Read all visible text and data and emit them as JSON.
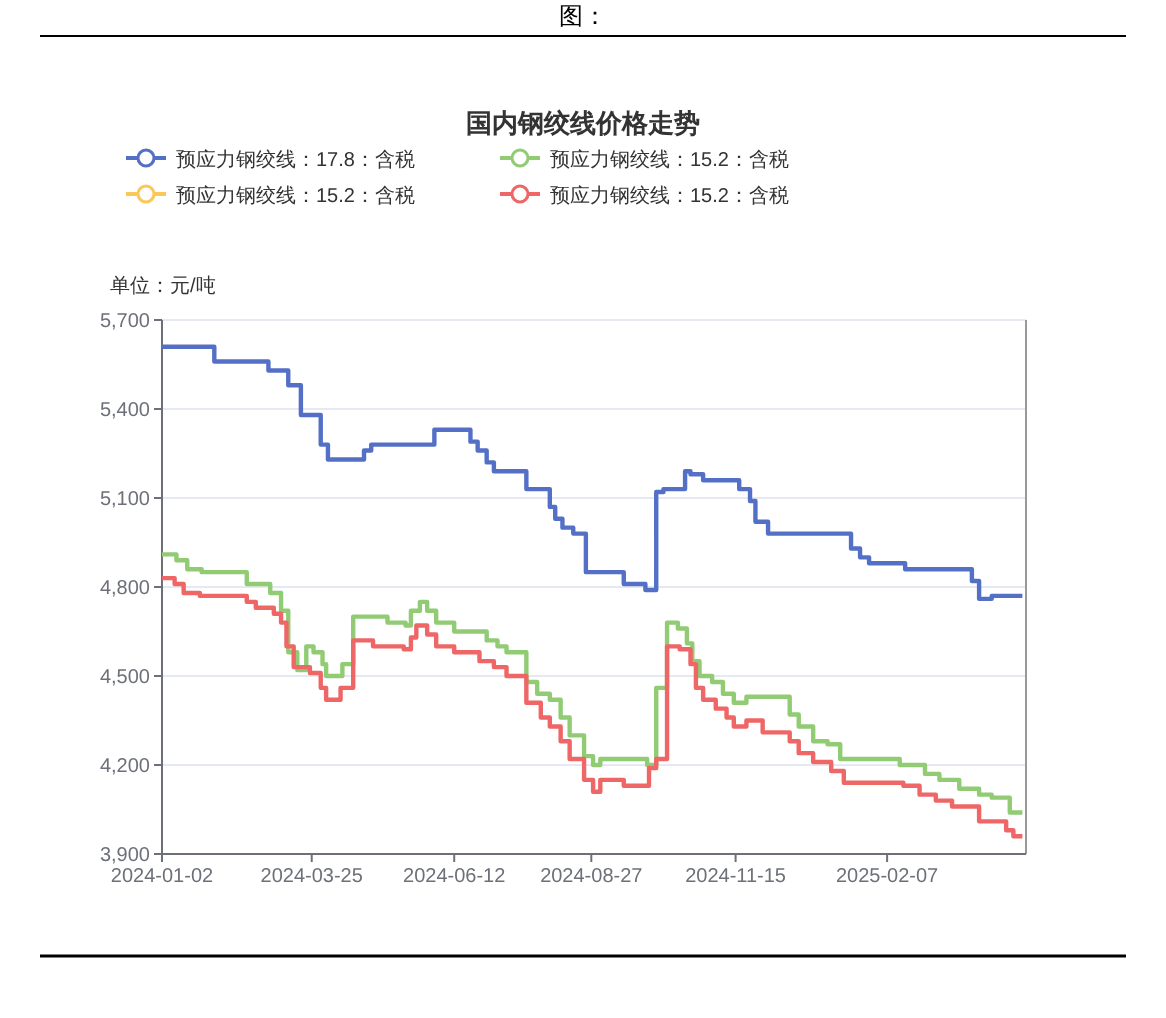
{
  "chart_data": {
    "type": "step",
    "title": "国内钢绞线价格走势",
    "ylabel": "单位：元/吨",
    "annotations": [
      "图："
    ],
    "xlim": [
      "2024-01-02",
      "2025-04-25"
    ],
    "xticks": [
      "2024-01-02",
      "2024-03-25",
      "2024-06-12",
      "2024-08-27",
      "2024-11-15",
      "2025-02-07"
    ],
    "ylim": [
      3900,
      5700
    ],
    "yticks": [
      {
        "value": 3900,
        "label": "3,900"
      },
      {
        "value": 4200,
        "label": "4,200"
      },
      {
        "value": 4500,
        "label": "4,500"
      },
      {
        "value": 4800,
        "label": "4,800"
      },
      {
        "value": 5100,
        "label": "5,100"
      },
      {
        "value": 5400,
        "label": "5,400"
      },
      {
        "value": 5700,
        "label": "5,700"
      }
    ],
    "grid": "y",
    "legend": "top",
    "marker": "none",
    "line_style": "solid",
    "series": [
      {
        "name": "预应力钢绞线：17.8：含税",
        "color": "#5470c6",
        "x": [
          "2024-01-02",
          "2024-01-31",
          "2024-03-01",
          "2024-03-12",
          "2024-03-19",
          "2024-03-30",
          "2024-04-03",
          "2024-04-23",
          "2024-04-27",
          "2024-06-01",
          "2024-06-21",
          "2024-06-25",
          "2024-06-30",
          "2024-07-04",
          "2024-07-22",
          "2024-08-04",
          "2024-08-07",
          "2024-08-11",
          "2024-08-17",
          "2024-08-24",
          "2024-09-14",
          "2024-09-26",
          "2024-10-02",
          "2024-10-06",
          "2024-10-18",
          "2024-10-21",
          "2024-10-28",
          "2024-11-17",
          "2024-11-23",
          "2024-11-26",
          "2024-12-03",
          "2025-01-18",
          "2025-01-23",
          "2025-01-28",
          "2025-02-17",
          "2025-03-26",
          "2025-03-30",
          "2025-04-06",
          "2025-04-23"
        ],
        "values": [
          5610,
          5560,
          5530,
          5480,
          5380,
          5280,
          5230,
          5260,
          5280,
          5330,
          5290,
          5260,
          5220,
          5190,
          5130,
          5070,
          5030,
          5000,
          4980,
          4850,
          4810,
          4790,
          5120,
          5130,
          5190,
          5180,
          5160,
          5130,
          5090,
          5020,
          4980,
          4930,
          4900,
          4880,
          4860,
          4820,
          4760,
          4770,
          4770
        ]
      },
      {
        "name": "预应力钢绞线：15.2：含税",
        "color": "#91cc75",
        "x": [
          "2024-01-02",
          "2024-01-10",
          "2024-01-16",
          "2024-01-24",
          "2024-02-18",
          "2024-03-02",
          "2024-03-08",
          "2024-03-12",
          "2024-03-17",
          "2024-03-22",
          "2024-03-26",
          "2024-03-31",
          "2024-04-02",
          "2024-04-11",
          "2024-04-17",
          "2024-05-06",
          "2024-05-16",
          "2024-05-19",
          "2024-05-24",
          "2024-05-28",
          "2024-06-02",
          "2024-06-12",
          "2024-06-30",
          "2024-07-06",
          "2024-07-11",
          "2024-07-22",
          "2024-07-28",
          "2024-08-04",
          "2024-08-10",
          "2024-08-15",
          "2024-08-23",
          "2024-08-28",
          "2024-09-01",
          "2024-09-27",
          "2024-10-02",
          "2024-10-08",
          "2024-10-14",
          "2024-10-19",
          "2024-10-22",
          "2024-10-26",
          "2024-11-02",
          "2024-11-08",
          "2024-11-14",
          "2024-11-21",
          "2024-12-15",
          "2024-12-20",
          "2024-12-28",
          "2025-01-05",
          "2025-01-12",
          "2025-02-14",
          "2025-02-28",
          "2025-03-08",
          "2025-03-19",
          "2025-03-30",
          "2025-04-06",
          "2025-04-16",
          "2025-04-23"
        ],
        "values": [
          4910,
          4890,
          4860,
          4850,
          4810,
          4780,
          4720,
          4580,
          4520,
          4600,
          4580,
          4540,
          4500,
          4540,
          4700,
          4680,
          4670,
          4720,
          4750,
          4720,
          4680,
          4650,
          4620,
          4600,
          4580,
          4480,
          4440,
          4420,
          4360,
          4300,
          4230,
          4200,
          4220,
          4200,
          4460,
          4680,
          4660,
          4610,
          4550,
          4500,
          4480,
          4440,
          4410,
          4430,
          4370,
          4330,
          4280,
          4270,
          4220,
          4200,
          4170,
          4150,
          4120,
          4100,
          4090,
          4040,
          4040
        ]
      },
      {
        "name": "预应力钢绞线：15.2：含税",
        "color": "#fac858"
      },
      {
        "name": "预应力钢绞线：15.2：含税",
        "color": "#ee6666",
        "x": [
          "2024-01-02",
          "2024-01-09",
          "2024-01-14",
          "2024-01-23",
          "2024-02-18",
          "2024-02-23",
          "2024-03-04",
          "2024-03-08",
          "2024-03-11",
          "2024-03-15",
          "2024-03-24",
          "2024-03-30",
          "2024-04-02",
          "2024-04-10",
          "2024-04-17",
          "2024-04-28",
          "2024-05-15",
          "2024-05-19",
          "2024-05-22",
          "2024-05-28",
          "2024-06-02",
          "2024-06-12",
          "2024-06-26",
          "2024-07-04",
          "2024-07-11",
          "2024-07-22",
          "2024-07-30",
          "2024-08-04",
          "2024-08-10",
          "2024-08-15",
          "2024-08-23",
          "2024-08-28",
          "2024-09-01",
          "2024-09-14",
          "2024-09-28",
          "2024-10-02",
          "2024-10-08",
          "2024-10-15",
          "2024-10-21",
          "2024-10-24",
          "2024-10-28",
          "2024-11-04",
          "2024-11-10",
          "2024-11-14",
          "2024-11-21",
          "2024-11-30",
          "2024-12-15",
          "2024-12-20",
          "2024-12-28",
          "2025-01-07",
          "2025-01-14",
          "2025-02-16",
          "2025-02-25",
          "2025-03-06",
          "2025-03-15",
          "2025-03-30",
          "2025-04-14",
          "2025-04-18",
          "2025-04-23"
        ],
        "values": [
          4830,
          4810,
          4780,
          4770,
          4750,
          4730,
          4710,
          4680,
          4600,
          4530,
          4510,
          4460,
          4420,
          4460,
          4620,
          4600,
          4590,
          4630,
          4670,
          4640,
          4600,
          4580,
          4550,
          4530,
          4500,
          4410,
          4360,
          4330,
          4280,
          4220,
          4150,
          4110,
          4150,
          4130,
          4190,
          4220,
          4600,
          4590,
          4540,
          4460,
          4420,
          4390,
          4360,
          4330,
          4350,
          4310,
          4280,
          4240,
          4210,
          4180,
          4140,
          4130,
          4100,
          4080,
          4060,
          4010,
          3980,
          3960,
          3960
        ]
      }
    ]
  }
}
